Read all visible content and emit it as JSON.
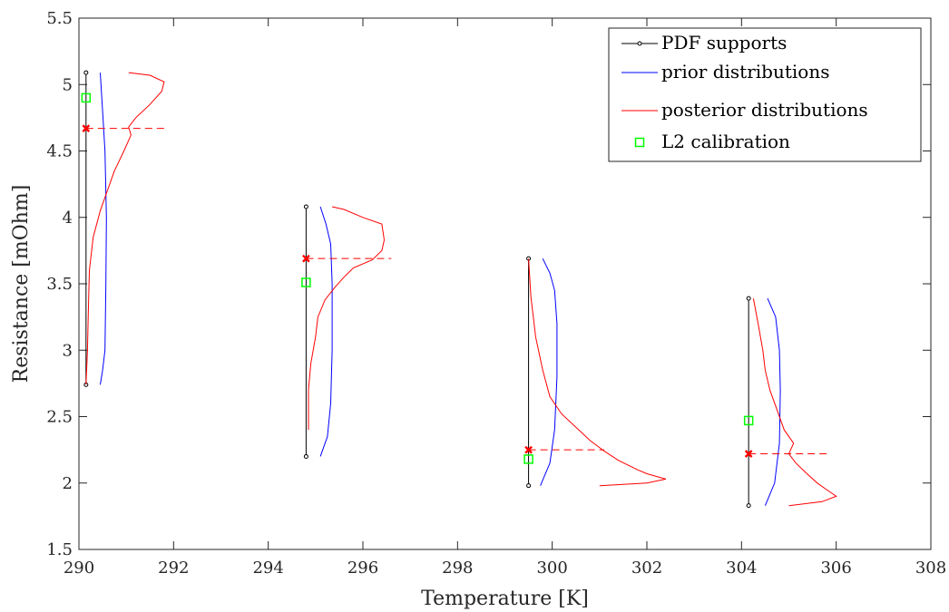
{
  "chart_data": {
    "type": "line",
    "title": "",
    "xlabel": "Temperature [K]",
    "ylabel": "Resistance [mOhm]",
    "xlim": [
      290,
      308
    ],
    "ylim": [
      1.5,
      5.5
    ],
    "xticks": [
      290,
      292,
      294,
      296,
      298,
      300,
      302,
      304,
      306,
      308
    ],
    "yticks": [
      1.5,
      2,
      2.5,
      3,
      3.5,
      4,
      4.5,
      5,
      5.5
    ],
    "xtick_labels": [
      "290",
      "292",
      "294",
      "296",
      "298",
      "300",
      "302",
      "304",
      "306",
      "308"
    ],
    "ytick_labels": [
      "1.5",
      "2",
      "2.5",
      "3",
      "3.5",
      "4",
      "4.5",
      "5",
      "5.5"
    ],
    "grid": false,
    "legend_position": "top-right",
    "legend": [
      {
        "label": "PDF supports",
        "kind": "line-dot",
        "color": "#000000"
      },
      {
        "label": "prior distributions",
        "kind": "line",
        "color": "#0000ff"
      },
      {
        "label": "posterior distributions",
        "kind": "line",
        "color": "#ff0000"
      },
      {
        "label": "L2 calibration",
        "kind": "square",
        "color": "#00ff00"
      }
    ],
    "groups": [
      {
        "temperature": 290.15,
        "support": [
          2.74,
          5.09
        ],
        "l2": 4.9,
        "map": 4.67,
        "map_line_end_x": 291.8,
        "prior": [
          [
            290.45,
            2.74
          ],
          [
            290.5,
            2.85
          ],
          [
            290.55,
            3.0
          ],
          [
            290.57,
            3.5
          ],
          [
            290.58,
            4.0
          ],
          [
            290.55,
            4.5
          ],
          [
            290.5,
            4.8
          ],
          [
            290.45,
            5.09
          ]
        ],
        "posterior": [
          [
            290.15,
            2.74
          ],
          [
            290.18,
            3.0
          ],
          [
            290.2,
            3.3
          ],
          [
            290.22,
            3.6
          ],
          [
            290.3,
            3.85
          ],
          [
            290.45,
            4.05
          ],
          [
            290.6,
            4.2
          ],
          [
            290.75,
            4.35
          ],
          [
            290.95,
            4.5
          ],
          [
            291.1,
            4.62
          ],
          [
            291.05,
            4.68
          ],
          [
            291.2,
            4.75
          ],
          [
            291.5,
            4.85
          ],
          [
            291.75,
            4.95
          ],
          [
            291.8,
            5.02
          ],
          [
            291.5,
            5.07
          ],
          [
            291.05,
            5.09
          ]
        ]
      },
      {
        "temperature": 294.8,
        "support": [
          2.2,
          4.08
        ],
        "l2": 3.51,
        "map": 3.69,
        "map_line_end_x": 296.6,
        "prior": [
          [
            295.1,
            2.2
          ],
          [
            295.25,
            2.35
          ],
          [
            295.32,
            2.6
          ],
          [
            295.35,
            3.0
          ],
          [
            295.35,
            3.5
          ],
          [
            295.32,
            3.8
          ],
          [
            295.22,
            3.95
          ],
          [
            295.1,
            4.08
          ]
        ],
        "posterior": [
          [
            294.85,
            2.4
          ],
          [
            294.85,
            2.7
          ],
          [
            294.9,
            2.9
          ],
          [
            295.0,
            3.1
          ],
          [
            295.05,
            3.25
          ],
          [
            295.2,
            3.38
          ],
          [
            295.4,
            3.47
          ],
          [
            295.6,
            3.55
          ],
          [
            295.8,
            3.62
          ],
          [
            296.2,
            3.68
          ],
          [
            296.4,
            3.75
          ],
          [
            296.45,
            3.83
          ],
          [
            296.4,
            3.95
          ],
          [
            296.0,
            4.0
          ],
          [
            295.6,
            4.06
          ],
          [
            295.35,
            4.08
          ]
        ]
      },
      {
        "temperature": 299.5,
        "support": [
          1.98,
          3.69
        ],
        "l2": 2.18,
        "map": 2.25,
        "map_line_end_x": 301.1,
        "prior": [
          [
            299.75,
            1.98
          ],
          [
            299.95,
            2.15
          ],
          [
            300.05,
            2.4
          ],
          [
            300.1,
            2.8
          ],
          [
            300.1,
            3.2
          ],
          [
            300.05,
            3.45
          ],
          [
            299.95,
            3.58
          ],
          [
            299.8,
            3.69
          ]
        ],
        "posterior": [
          [
            301.0,
            1.98
          ],
          [
            302.0,
            2.0
          ],
          [
            302.4,
            2.03
          ],
          [
            302.0,
            2.07
          ],
          [
            301.8,
            2.1
          ],
          [
            301.4,
            2.17
          ],
          [
            301.1,
            2.24
          ],
          [
            300.8,
            2.32
          ],
          [
            300.5,
            2.42
          ],
          [
            300.2,
            2.52
          ],
          [
            299.95,
            2.65
          ],
          [
            299.8,
            2.85
          ],
          [
            299.65,
            3.1
          ],
          [
            299.55,
            3.4
          ],
          [
            299.5,
            3.69
          ]
        ]
      },
      {
        "temperature": 304.15,
        "support": [
          1.83,
          3.39
        ],
        "l2": 2.47,
        "map": 2.22,
        "map_line_end_x": 305.8,
        "prior": [
          [
            304.5,
            1.83
          ],
          [
            304.7,
            2.0
          ],
          [
            304.8,
            2.3
          ],
          [
            304.82,
            2.7
          ],
          [
            304.8,
            3.0
          ],
          [
            304.72,
            3.25
          ],
          [
            304.55,
            3.39
          ]
        ],
        "posterior": [
          [
            305.0,
            1.83
          ],
          [
            305.7,
            1.86
          ],
          [
            306.0,
            1.9
          ],
          [
            305.8,
            1.95
          ],
          [
            305.6,
            2.0
          ],
          [
            305.35,
            2.08
          ],
          [
            305.15,
            2.15
          ],
          [
            305.0,
            2.22
          ],
          [
            305.1,
            2.3
          ],
          [
            304.9,
            2.4
          ],
          [
            304.75,
            2.55
          ],
          [
            304.6,
            2.7
          ],
          [
            304.5,
            2.85
          ],
          [
            304.45,
            3.0
          ],
          [
            304.35,
            3.2
          ],
          [
            304.25,
            3.39
          ]
        ]
      }
    ]
  }
}
